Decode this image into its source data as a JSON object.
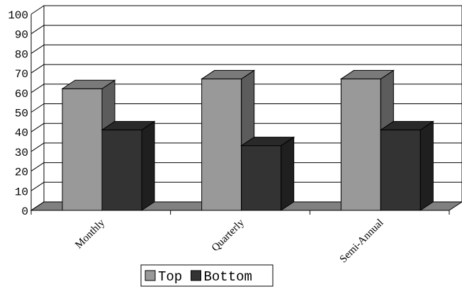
{
  "chart_data": {
    "type": "bar",
    "style": "3d-clustered-column",
    "categories": [
      "Monthly",
      "Quarterly",
      "Semi-Annual"
    ],
    "series": [
      {
        "name": "Top",
        "values": [
          62,
          67,
          67
        ],
        "color": "#999999"
      },
      {
        "name": "Bottom",
        "values": [
          41,
          33,
          41
        ],
        "color": "#333333"
      }
    ],
    "ylim": [
      0,
      100
    ],
    "yticks": [
      0,
      10,
      20,
      30,
      40,
      50,
      60,
      70,
      80,
      90,
      100
    ],
    "grid": true,
    "legend": "bottom-center",
    "xlabel": "",
    "ylabel": "",
    "title": ""
  }
}
